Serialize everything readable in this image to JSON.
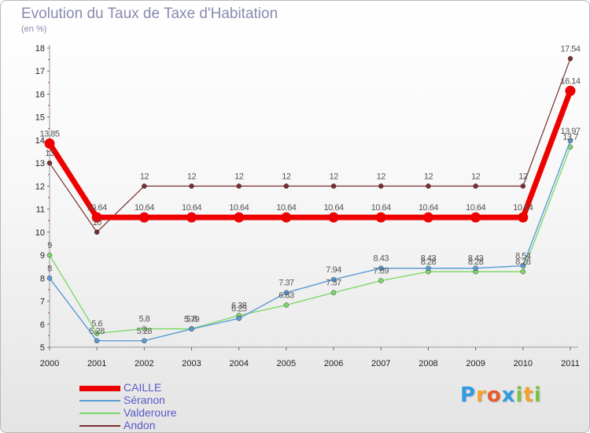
{
  "title": "Evolution du Taux de Taxe d'Habitation",
  "unit_label": "(en %)",
  "brand": {
    "letters": [
      {
        "char": "P",
        "color": "#2f9be0"
      },
      {
        "char": "r",
        "color": "#f2a12a"
      },
      {
        "char": "o",
        "color": "#e85a2a"
      },
      {
        "char": "x",
        "color": "#2f9be0"
      },
      {
        "char": "i",
        "color": "#7bc242"
      },
      {
        "char": "t",
        "color": "#f2a12a"
      },
      {
        "char": "i",
        "color": "#7bc242"
      }
    ]
  },
  "chart_data": {
    "type": "line",
    "title": "Evolution du Taux de Taxe d'Habitation",
    "ylabel": "(en %)",
    "xlabel": "",
    "x": [
      "2000",
      "2001",
      "2002",
      "2003",
      "2004",
      "2005",
      "2006",
      "2007",
      "2008",
      "2009",
      "2010",
      "2011"
    ],
    "ylim": [
      5,
      18
    ],
    "yticks": [
      5,
      6,
      7,
      8,
      9,
      10,
      11,
      12,
      13,
      14,
      15,
      16,
      17,
      18
    ],
    "grid": false,
    "legend_position": "bottom-left",
    "series": [
      {
        "name": "CAILLE",
        "color": "#ee0000",
        "values": [
          13.85,
          10.64,
          10.64,
          10.64,
          10.64,
          10.64,
          10.64,
          10.64,
          10.64,
          10.64,
          10.64,
          16.14
        ],
        "labels": [
          "13.85",
          "10.64",
          "10.64",
          "10.64",
          "10.64",
          "10.64",
          "10.64",
          "10.64",
          "10.64",
          "10.64",
          "10.64",
          "16.14"
        ]
      },
      {
        "name": "Séranon",
        "color": "#5b9bd5",
        "values": [
          8,
          5.28,
          5.28,
          5.79,
          6.25,
          7.37,
          7.94,
          8.43,
          8.43,
          8.43,
          8.54,
          13.97
        ],
        "labels": [
          "8",
          "5.28",
          "5.28",
          "5.79",
          "6.25",
          "7.37",
          "7.94",
          "8.43",
          "8.43",
          "8.43",
          "8.54",
          "13.97"
        ]
      },
      {
        "name": "Valderoure",
        "color": "#7fd96a",
        "values": [
          9,
          5.6,
          5.8,
          5.8,
          6.38,
          6.83,
          7.37,
          7.89,
          8.28,
          8.28,
          8.28,
          13.7
        ],
        "labels": [
          "9",
          "5.6",
          "5.8",
          "5.8",
          "6.38",
          "6.83",
          "7.37",
          "7.89",
          "8.28",
          "8.28",
          "8.28",
          "13.7"
        ]
      },
      {
        "name": "Andon",
        "color": "#7a2e2e",
        "values": [
          13,
          10,
          12,
          12,
          12,
          12,
          12,
          12,
          12,
          12,
          12,
          17.54
        ],
        "labels": [
          "13",
          "10",
          "12",
          "12",
          "12",
          "12",
          "12",
          "12",
          "12",
          "12",
          "12",
          "17.54"
        ]
      }
    ]
  }
}
